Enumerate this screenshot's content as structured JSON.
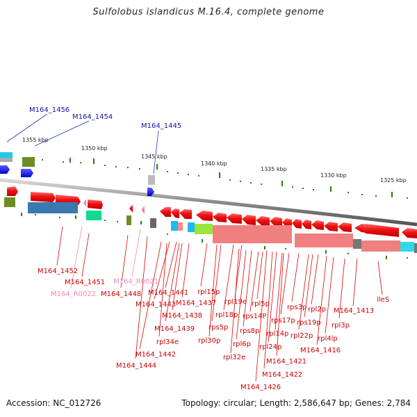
{
  "title": "Sulfolobus islandicus M.16.4, complete genome",
  "footer": {
    "accession": "Accession: NC_012726",
    "summary": "Topology: circular; Length: 2,586,647 bp; Genes: 2,784"
  },
  "colors": {
    "backbone": "#8a8a8a",
    "gene_red": "#ee1111",
    "gene_blue": "#1a1aee",
    "label_red": "#cc0000",
    "label_blue": "#1111aa",
    "label_pink": "#ee88bb",
    "tick_green": "#2c7a12"
  },
  "scale_labels": [
    "1355 kbp",
    "1350 kbp",
    "1345 kbp",
    "1340 kbp",
    "1335 kbp",
    "1330 kbp",
    "1325 kbp"
  ],
  "gene_labels": [
    {
      "text": "M164_1456",
      "color": "blue"
    },
    {
      "text": "M164_1454",
      "color": "blue"
    },
    {
      "text": "M164_1445",
      "color": "blue"
    },
    {
      "text": "M164_1452",
      "color": "red"
    },
    {
      "text": "M164_1451",
      "color": "red"
    },
    {
      "text": "M164_R0022",
      "color": "pink"
    },
    {
      "text": "M164_R0021",
      "color": "pink"
    },
    {
      "text": "M164_1448",
      "color": "red"
    },
    {
      "text": "M164_1441",
      "color": "red"
    },
    {
      "text": "M164_1443",
      "color": "red"
    },
    {
      "text": "rpl15p",
      "color": "red"
    },
    {
      "text": "M164_1437",
      "color": "red"
    },
    {
      "text": "M164_1438",
      "color": "red"
    },
    {
      "text": "M164_1439",
      "color": "red"
    },
    {
      "text": "rpl34e",
      "color": "red"
    },
    {
      "text": "M164_1442",
      "color": "red"
    },
    {
      "text": "M164_1444",
      "color": "red"
    },
    {
      "text": "rpl19e",
      "color": "red"
    },
    {
      "text": "rpl18p",
      "color": "red"
    },
    {
      "text": "rps5p",
      "color": "red"
    },
    {
      "text": "rpl30p",
      "color": "red"
    },
    {
      "text": "rpl5p",
      "color": "red"
    },
    {
      "text": "rps14P",
      "color": "red"
    },
    {
      "text": "rps8p",
      "color": "red"
    },
    {
      "text": "rpl6p",
      "color": "red"
    },
    {
      "text": "rpl32e",
      "color": "red"
    },
    {
      "text": "rps3p",
      "color": "red"
    },
    {
      "text": "rps17p",
      "color": "red"
    },
    {
      "text": "rpl14p",
      "color": "red"
    },
    {
      "text": "rpl24p",
      "color": "red"
    },
    {
      "text": "M164_1421",
      "color": "red"
    },
    {
      "text": "M164_1422",
      "color": "red"
    },
    {
      "text": "M164_1426",
      "color": "red"
    },
    {
      "text": "rpl2p",
      "color": "red"
    },
    {
      "text": "rps19p",
      "color": "red"
    },
    {
      "text": "rpl22p",
      "color": "red"
    },
    {
      "text": "M164_1413",
      "color": "red"
    },
    {
      "text": "rpl3p",
      "color": "red"
    },
    {
      "text": "rpl4lp",
      "color": "red"
    },
    {
      "text": "M164_1416",
      "color": "red"
    },
    {
      "text": "ileS",
      "color": "red"
    }
  ]
}
